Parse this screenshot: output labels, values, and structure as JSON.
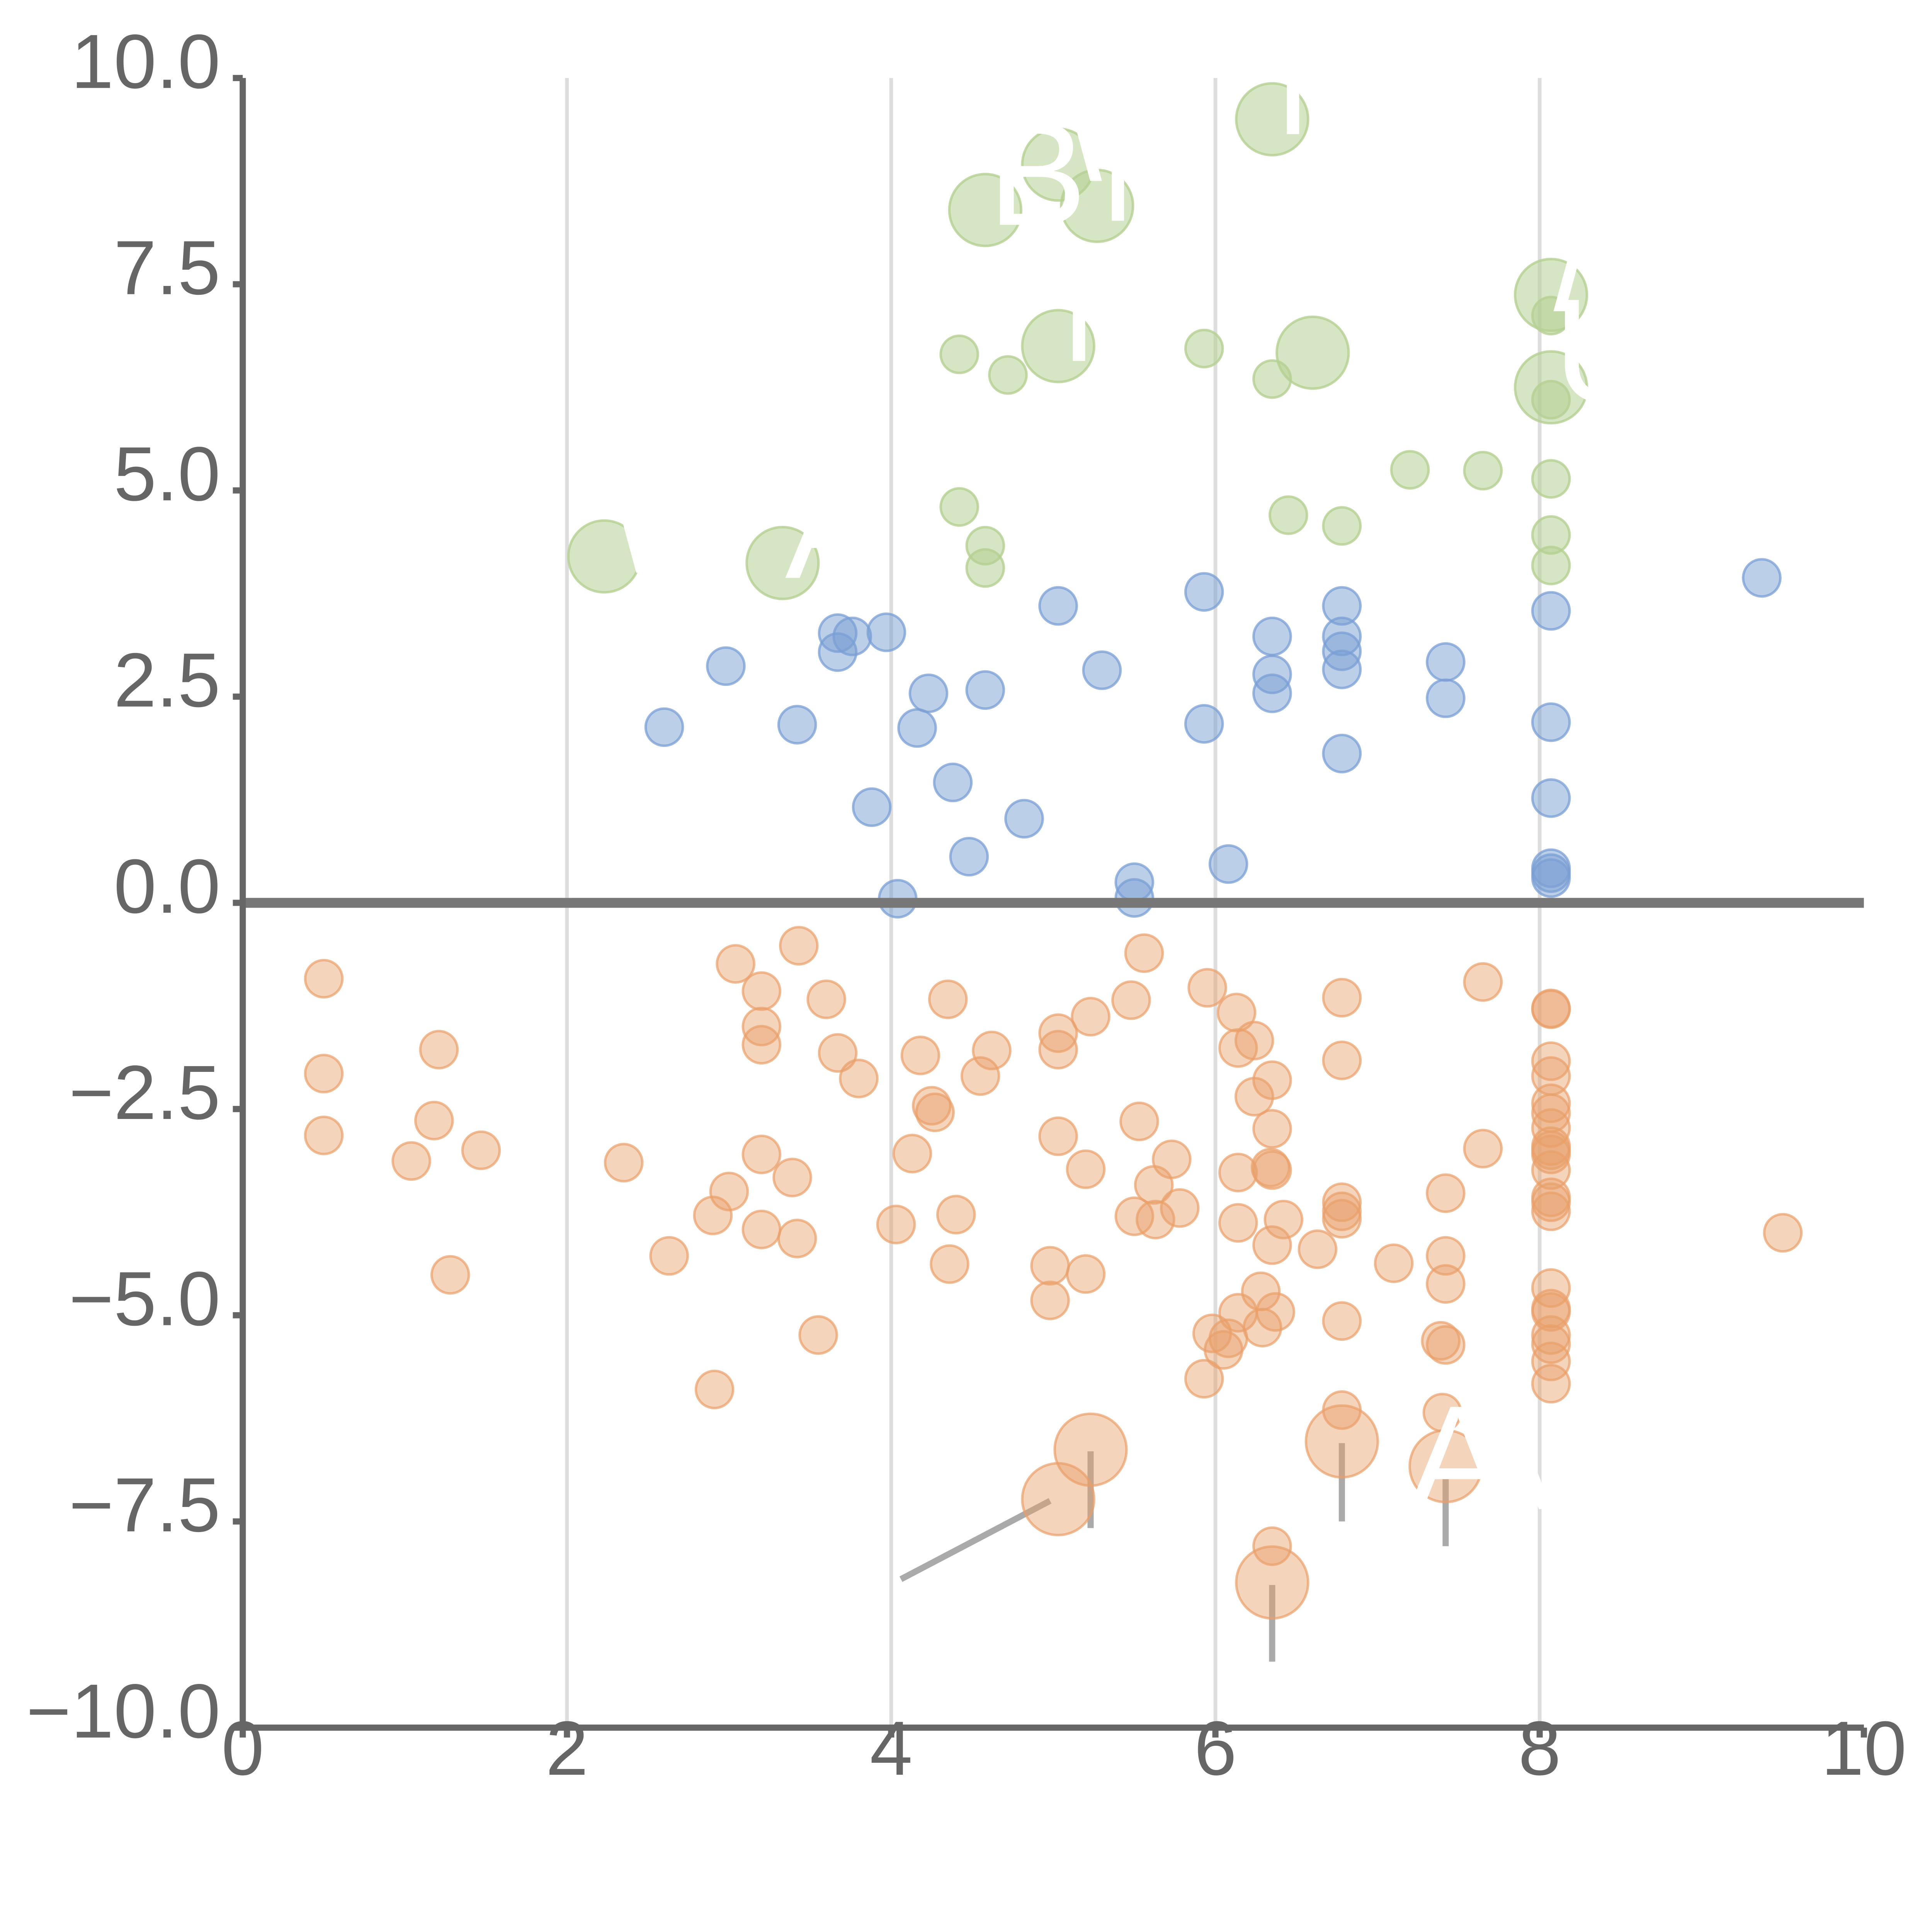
{
  "chart_data": {
    "type": "scatter",
    "title": "",
    "xlabel": "",
    "ylabel": "",
    "xlim": [
      0,
      10
    ],
    "ylim": [
      -10,
      10
    ],
    "x_ticks": [
      0,
      2,
      4,
      6,
      8,
      10
    ],
    "y_ticks": [
      -10,
      -7.5,
      -5,
      -2.5,
      0,
      2.5,
      5,
      7.5,
      10
    ],
    "x_tick_labels": [
      "0",
      "2",
      "4",
      "6",
      "8",
      "10"
    ],
    "y_tick_labels": [
      "−10.0",
      "−7.5",
      "−5.0",
      "−2.5",
      "0.0",
      "2.5",
      "5.0",
      "7.5",
      "10.0"
    ],
    "grid": {
      "vertical": true,
      "horizontal": false
    },
    "zero_line": true,
    "colors": {
      "green": "#b5d092",
      "blue": "#7a9fd4",
      "orange": "#e9a06a",
      "label": "#ffffff",
      "axis": "#666666",
      "grid": "#dddddd"
    },
    "series": [
      {
        "color": "#b5d092",
        "opacity": 0.55,
        "points": [
          {
            "x": 2.23,
            "y": 4.2,
            "r": 2,
            "label": "\\"
          },
          {
            "x": 3.33,
            "y": 4.12,
            "r": 2,
            "label": "AI"
          },
          {
            "x": 4.58,
            "y": 8.4,
            "r": 2,
            "label": "B"
          },
          {
            "x": 5.03,
            "y": 8.95,
            "r": 2,
            "label": "\\"
          },
          {
            "x": 5.27,
            "y": 8.45,
            "r": 2,
            "label": "N"
          },
          {
            "x": 6.35,
            "y": 9.5,
            "r": 2,
            "label": "N"
          },
          {
            "x": 5.03,
            "y": 6.75,
            "r": 2,
            "label": "M"
          },
          {
            "x": 6.6,
            "y": 6.67,
            "r": 2,
            "label": "'"
          },
          {
            "x": 8.07,
            "y": 7.37,
            "r": 2,
            "label": "/"
          },
          {
            "x": 8.07,
            "y": 6.25,
            "r": 2,
            "label": "U"
          },
          {
            "x": 4.42,
            "y": 6.65,
            "r": 1
          },
          {
            "x": 4.72,
            "y": 6.4,
            "r": 1
          },
          {
            "x": 5.93,
            "y": 6.72,
            "r": 1
          },
          {
            "x": 6.35,
            "y": 6.35,
            "r": 1
          },
          {
            "x": 8.07,
            "y": 7.12,
            "r": 1
          },
          {
            "x": 8.07,
            "y": 6.1,
            "r": 1
          },
          {
            "x": 7.2,
            "y": 5.25,
            "r": 1
          },
          {
            "x": 7.65,
            "y": 5.24,
            "r": 1
          },
          {
            "x": 8.07,
            "y": 5.14,
            "r": 1
          },
          {
            "x": 4.42,
            "y": 4.8,
            "r": 1
          },
          {
            "x": 4.58,
            "y": 4.33,
            "r": 1
          },
          {
            "x": 4.58,
            "y": 4.06,
            "r": 1
          },
          {
            "x": 6.45,
            "y": 4.7,
            "r": 1
          },
          {
            "x": 6.78,
            "y": 4.57,
            "r": 1
          },
          {
            "x": 8.07,
            "y": 4.46,
            "r": 1
          },
          {
            "x": 8.07,
            "y": 4.09,
            "r": 1
          }
        ]
      },
      {
        "color": "#7a9fd4",
        "opacity": 0.5,
        "points": [
          {
            "x": 2.6,
            "y": 2.13,
            "r": 1
          },
          {
            "x": 2.98,
            "y": 2.87,
            "r": 1
          },
          {
            "x": 3.42,
            "y": 2.16,
            "r": 1
          },
          {
            "x": 3.67,
            "y": 3.27,
            "r": 1
          },
          {
            "x": 3.67,
            "y": 3.04,
            "r": 1
          },
          {
            "x": 3.76,
            "y": 3.23,
            "r": 1
          },
          {
            "x": 3.97,
            "y": 3.28,
            "r": 1
          },
          {
            "x": 3.88,
            "y": 1.16,
            "r": 1
          },
          {
            "x": 4.04,
            "y": 0.05,
            "r": 1
          },
          {
            "x": 4.23,
            "y": 2.54,
            "r": 1
          },
          {
            "x": 4.16,
            "y": 2.12,
            "r": 1
          },
          {
            "x": 4.38,
            "y": 1.46,
            "r": 1
          },
          {
            "x": 4.58,
            "y": 2.58,
            "r": 1
          },
          {
            "x": 4.48,
            "y": 0.56,
            "r": 1
          },
          {
            "x": 4.82,
            "y": 1.02,
            "r": 1
          },
          {
            "x": 5.03,
            "y": 3.6,
            "r": 1
          },
          {
            "x": 5.3,
            "y": 2.82,
            "r": 1
          },
          {
            "x": 5.5,
            "y": 0.25,
            "r": 1
          },
          {
            "x": 5.5,
            "y": 0.06,
            "r": 1
          },
          {
            "x": 5.93,
            "y": 3.77,
            "r": 1
          },
          {
            "x": 5.93,
            "y": 2.17,
            "r": 1
          },
          {
            "x": 6.08,
            "y": 0.47,
            "r": 1
          },
          {
            "x": 6.35,
            "y": 3.23,
            "r": 1
          },
          {
            "x": 6.35,
            "y": 2.77,
            "r": 1
          },
          {
            "x": 6.35,
            "y": 2.54,
            "r": 1
          },
          {
            "x": 6.78,
            "y": 3.6,
            "r": 1
          },
          {
            "x": 6.78,
            "y": 3.23,
            "r": 1
          },
          {
            "x": 6.78,
            "y": 3.05,
            "r": 1
          },
          {
            "x": 6.78,
            "y": 2.83,
            "r": 1
          },
          {
            "x": 6.78,
            "y": 1.81,
            "r": 1
          },
          {
            "x": 7.42,
            "y": 2.92,
            "r": 1
          },
          {
            "x": 7.42,
            "y": 2.48,
            "r": 1
          },
          {
            "x": 8.07,
            "y": 3.54,
            "r": 1
          },
          {
            "x": 8.07,
            "y": 2.19,
            "r": 1
          },
          {
            "x": 8.07,
            "y": 1.27,
            "r": 1
          },
          {
            "x": 8.07,
            "y": 0.42,
            "r": 1
          },
          {
            "x": 8.07,
            "y": 0.36,
            "r": 1
          },
          {
            "x": 8.07,
            "y": 0.3,
            "r": 1
          },
          {
            "x": 9.37,
            "y": 3.94,
            "r": 1
          }
        ]
      },
      {
        "color": "#e9a06a",
        "opacity": 0.45,
        "points": [
          {
            "x": 0.5,
            "y": -0.92,
            "r": 1
          },
          {
            "x": 0.5,
            "y": -2.07,
            "r": 1
          },
          {
            "x": 0.5,
            "y": -2.82,
            "r": 1
          },
          {
            "x": 1.04,
            "y": -3.13,
            "r": 1
          },
          {
            "x": 1.18,
            "y": -2.64,
            "r": 1
          },
          {
            "x": 1.21,
            "y": -1.78,
            "r": 1
          },
          {
            "x": 1.28,
            "y": -4.51,
            "r": 1
          },
          {
            "x": 1.47,
            "y": -3.0,
            "r": 1
          },
          {
            "x": 2.35,
            "y": -3.15,
            "r": 1
          },
          {
            "x": 2.63,
            "y": -4.28,
            "r": 1
          },
          {
            "x": 2.9,
            "y": -3.79,
            "r": 1
          },
          {
            "x": 2.91,
            "y": -5.9,
            "r": 1
          },
          {
            "x": 3.0,
            "y": -3.5,
            "r": 1
          },
          {
            "x": 3.04,
            "y": -0.74,
            "r": 1
          },
          {
            "x": 3.2,
            "y": -1.07,
            "r": 1
          },
          {
            "x": 3.2,
            "y": -1.5,
            "r": 1
          },
          {
            "x": 3.2,
            "y": -1.72,
            "r": 1
          },
          {
            "x": 3.2,
            "y": -3.05,
            "r": 1
          },
          {
            "x": 3.2,
            "y": -3.96,
            "r": 1
          },
          {
            "x": 3.39,
            "y": -3.33,
            "r": 1
          },
          {
            "x": 3.42,
            "y": -4.07,
            "r": 1
          },
          {
            "x": 3.43,
            "y": -0.52,
            "r": 1
          },
          {
            "x": 3.55,
            "y": -5.24,
            "r": 1
          },
          {
            "x": 3.6,
            "y": -1.17,
            "r": 1
          },
          {
            "x": 3.67,
            "y": -1.82,
            "r": 1
          },
          {
            "x": 3.8,
            "y": -2.13,
            "r": 1
          },
          {
            "x": 4.03,
            "y": -3.9,
            "r": 1
          },
          {
            "x": 4.13,
            "y": -3.04,
            "r": 1
          },
          {
            "x": 4.18,
            "y": -1.85,
            "r": 1
          },
          {
            "x": 4.25,
            "y": -2.46,
            "r": 1
          },
          {
            "x": 4.27,
            "y": -2.54,
            "r": 1
          },
          {
            "x": 4.35,
            "y": -1.17,
            "r": 1
          },
          {
            "x": 4.36,
            "y": -4.38,
            "r": 1
          },
          {
            "x": 4.4,
            "y": -3.78,
            "r": 1
          },
          {
            "x": 4.55,
            "y": -2.1,
            "r": 1
          },
          {
            "x": 4.62,
            "y": -1.79,
            "r": 1
          },
          {
            "x": 4.98,
            "y": -4.4,
            "r": 1
          },
          {
            "x": 4.98,
            "y": -4.82,
            "r": 1
          },
          {
            "x": 5.03,
            "y": -1.58,
            "r": 1
          },
          {
            "x": 5.03,
            "y": -1.78,
            "r": 1
          },
          {
            "x": 5.03,
            "y": -2.83,
            "r": 1
          },
          {
            "x": 5.2,
            "y": -3.23,
            "r": 1
          },
          {
            "x": 5.2,
            "y": -4.5,
            "r": 1
          },
          {
            "x": 5.23,
            "y": -1.38,
            "r": 1
          },
          {
            "x": 5.48,
            "y": -1.18,
            "r": 1
          },
          {
            "x": 5.5,
            "y": -3.8,
            "r": 1
          },
          {
            "x": 5.53,
            "y": -2.65,
            "r": 1
          },
          {
            "x": 5.56,
            "y": -0.61,
            "r": 1
          },
          {
            "x": 5.62,
            "y": -3.42,
            "r": 1
          },
          {
            "x": 5.63,
            "y": -3.84,
            "r": 1
          },
          {
            "x": 5.73,
            "y": -3.11,
            "r": 1
          },
          {
            "x": 5.78,
            "y": -3.7,
            "r": 1
          },
          {
            "x": 5.93,
            "y": -5.77,
            "r": 1
          },
          {
            "x": 5.95,
            "y": -1.03,
            "r": 1
          },
          {
            "x": 5.98,
            "y": -5.22,
            "r": 1
          },
          {
            "x": 6.05,
            "y": -5.42,
            "r": 1
          },
          {
            "x": 6.08,
            "y": -5.28,
            "r": 1
          },
          {
            "x": 6.13,
            "y": -1.33,
            "r": 1
          },
          {
            "x": 6.14,
            "y": -3.27,
            "r": 1
          },
          {
            "x": 6.14,
            "y": -3.88,
            "r": 1
          },
          {
            "x": 6.14,
            "y": -1.76,
            "r": 1
          },
          {
            "x": 6.14,
            "y": -4.97,
            "r": 1
          },
          {
            "x": 6.24,
            "y": -2.35,
            "r": 1
          },
          {
            "x": 6.24,
            "y": -1.67,
            "r": 1
          },
          {
            "x": 6.28,
            "y": -4.71,
            "r": 1
          },
          {
            "x": 6.29,
            "y": -5.15,
            "r": 1
          },
          {
            "x": 6.34,
            "y": -3.21,
            "r": 1
          },
          {
            "x": 6.35,
            "y": -2.15,
            "r": 1
          },
          {
            "x": 6.35,
            "y": -2.74,
            "r": 1
          },
          {
            "x": 6.35,
            "y": -3.24,
            "r": 1
          },
          {
            "x": 6.35,
            "y": -4.15,
            "r": 1
          },
          {
            "x": 6.35,
            "y": -7.8,
            "r": 1
          },
          {
            "x": 6.37,
            "y": -4.96,
            "r": 1
          },
          {
            "x": 6.42,
            "y": -3.84,
            "r": 1
          },
          {
            "x": 6.63,
            "y": -4.2,
            "r": 1
          },
          {
            "x": 6.78,
            "y": -1.15,
            "r": 1
          },
          {
            "x": 6.78,
            "y": -1.91,
            "r": 1
          },
          {
            "x": 6.78,
            "y": -3.63,
            "r": 1
          },
          {
            "x": 6.78,
            "y": -3.74,
            "r": 1
          },
          {
            "x": 6.78,
            "y": -3.83,
            "r": 1
          },
          {
            "x": 6.78,
            "y": -5.07,
            "r": 1
          },
          {
            "x": 6.78,
            "y": -6.15,
            "r": 1
          },
          {
            "x": 7.1,
            "y": -4.37,
            "r": 1
          },
          {
            "x": 7.39,
            "y": -5.31,
            "r": 1
          },
          {
            "x": 7.42,
            "y": -3.52,
            "r": 1
          },
          {
            "x": 7.42,
            "y": -4.28,
            "r": 1
          },
          {
            "x": 7.42,
            "y": -4.62,
            "r": 1
          },
          {
            "x": 7.42,
            "y": -5.36,
            "r": 1
          },
          {
            "x": 7.4,
            "y": -6.18,
            "r": 1
          },
          {
            "x": 7.65,
            "y": -0.96,
            "r": 1
          },
          {
            "x": 7.65,
            "y": -2.98,
            "r": 1
          },
          {
            "x": 8.07,
            "y": -1.29,
            "r": 1
          },
          {
            "x": 8.07,
            "y": -1.28,
            "r": 1
          },
          {
            "x": 8.07,
            "y": -1.92,
            "r": 1
          },
          {
            "x": 8.07,
            "y": -2.1,
            "r": 1
          },
          {
            "x": 8.07,
            "y": -2.43,
            "r": 1
          },
          {
            "x": 8.07,
            "y": -2.55,
            "r": 1
          },
          {
            "x": 8.07,
            "y": -2.73,
            "r": 1
          },
          {
            "x": 8.07,
            "y": -2.95,
            "r": 1
          },
          {
            "x": 8.07,
            "y": -3.0,
            "r": 1
          },
          {
            "x": 8.07,
            "y": -3.05,
            "r": 1
          },
          {
            "x": 8.07,
            "y": -3.24,
            "r": 1
          },
          {
            "x": 8.07,
            "y": -3.57,
            "r": 1
          },
          {
            "x": 8.07,
            "y": -3.63,
            "r": 1
          },
          {
            "x": 8.07,
            "y": -3.74,
            "r": 1
          },
          {
            "x": 8.07,
            "y": -4.67,
            "r": 1
          },
          {
            "x": 8.07,
            "y": -4.92,
            "r": 1
          },
          {
            "x": 8.07,
            "y": -4.96,
            "r": 1
          },
          {
            "x": 8.07,
            "y": -5.24,
            "r": 1
          },
          {
            "x": 8.07,
            "y": -5.35,
            "r": 1
          },
          {
            "x": 8.07,
            "y": -5.56,
            "r": 1
          },
          {
            "x": 8.07,
            "y": -5.83,
            "r": 1
          },
          {
            "x": 9.5,
            "y": -4.0,
            "r": 1
          },
          {
            "x": 5.03,
            "y": -7.23,
            "r": 2
          },
          {
            "x": 5.23,
            "y": -6.63,
            "r": 2
          },
          {
            "x": 6.35,
            "y": -8.24,
            "r": 2
          },
          {
            "x": 6.78,
            "y": -6.53,
            "r": 2
          },
          {
            "x": 7.42,
            "y": -6.83,
            "r": 2
          }
        ]
      }
    ],
    "annotations": [
      {
        "text": "AV",
        "x": 7.42,
        "y": -7.2
      }
    ],
    "leader_lines": [
      {
        "x1": 4.98,
        "y1": -7.25,
        "x2": 4.06,
        "y2": -8.2
      },
      {
        "x1": 5.23,
        "y1": -6.65,
        "x2": 5.23,
        "y2": -7.58
      },
      {
        "x1": 6.35,
        "y1": -8.27,
        "x2": 6.35,
        "y2": -9.2
      },
      {
        "x1": 6.78,
        "y1": -6.55,
        "x2": 6.78,
        "y2": -7.5
      },
      {
        "x1": 7.42,
        "y1": -6.88,
        "x2": 7.42,
        "y2": -7.8
      }
    ]
  }
}
